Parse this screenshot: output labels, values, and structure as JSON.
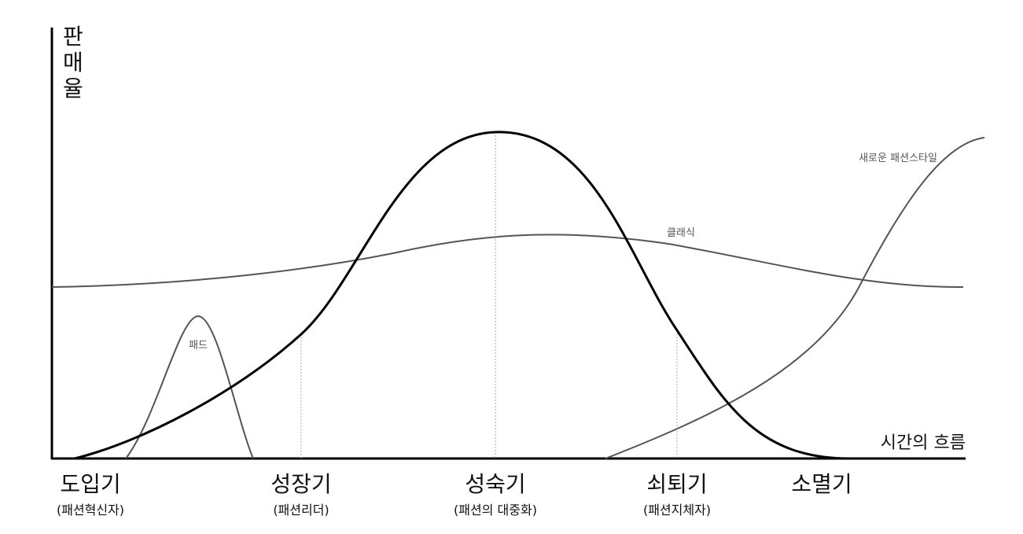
{
  "axes": {
    "y_label": "판매율",
    "x_label": "시간의 흐름"
  },
  "curves": [
    {
      "label": "새로운 패션스타일"
    },
    {
      "label": "클래식"
    },
    {
      "label": "패드"
    }
  ],
  "stages": [
    {
      "label": "도입기",
      "sublabel": "(패션혁신자)"
    },
    {
      "label": "성장기",
      "sublabel": "(패션리더)"
    },
    {
      "label": "성숙기",
      "sublabel": "(패션의 대중화)"
    },
    {
      "label": "쇠퇴기",
      "sublabel": "(패션지체자)"
    },
    {
      "label": "소멸기"
    }
  ]
}
